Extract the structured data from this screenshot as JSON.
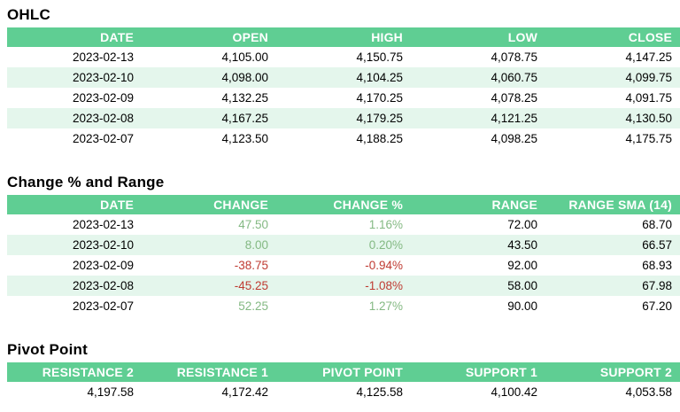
{
  "colors": {
    "header_bg": "#5fce93",
    "header_text": "#ffffff",
    "stripe_bg": "#e4f6ec",
    "body_text": "#000000",
    "positive_text": "#84b983",
    "negative_text": "#bf3b32"
  },
  "chart_data": [
    {
      "type": "table",
      "title": "OHLC",
      "columns": [
        "DATE",
        "OPEN",
        "HIGH",
        "LOW",
        "CLOSE"
      ],
      "rows": [
        [
          "2023-02-13",
          "4,105.00",
          "4,150.75",
          "4,078.75",
          "4,147.25"
        ],
        [
          "2023-02-10",
          "4,098.00",
          "4,104.25",
          "4,060.75",
          "4,099.75"
        ],
        [
          "2023-02-09",
          "4,132.25",
          "4,170.25",
          "4,078.25",
          "4,091.75"
        ],
        [
          "2023-02-08",
          "4,167.25",
          "4,179.25",
          "4,121.25",
          "4,130.50"
        ],
        [
          "2023-02-07",
          "4,123.50",
          "4,188.25",
          "4,098.25",
          "4,175.75"
        ]
      ]
    },
    {
      "type": "table",
      "title": "Change % and Range",
      "columns": [
        "DATE",
        "CHANGE",
        "CHANGE %",
        "RANGE",
        "RANGE SMA (14)"
      ],
      "rows": [
        [
          "2023-02-13",
          "47.50",
          "1.16%",
          "72.00",
          "68.70"
        ],
        [
          "2023-02-10",
          "8.00",
          "0.20%",
          "43.50",
          "66.57"
        ],
        [
          "2023-02-09",
          "-38.75",
          "-0.94%",
          "92.00",
          "68.93"
        ],
        [
          "2023-02-08",
          "-45.25",
          "-1.08%",
          "58.00",
          "67.98"
        ],
        [
          "2023-02-07",
          "52.25",
          "1.27%",
          "90.00",
          "67.20"
        ]
      ],
      "change_signs": [
        "pos",
        "pos",
        "neg",
        "neg",
        "pos"
      ]
    },
    {
      "type": "table",
      "title": "Pivot Point",
      "columns": [
        "RESISTANCE 2",
        "RESISTANCE 1",
        "PIVOT POINT",
        "SUPPORT 1",
        "SUPPORT 2"
      ],
      "rows": [
        [
          "4,197.58",
          "4,172.42",
          "4,125.58",
          "4,100.42",
          "4,053.58"
        ]
      ]
    }
  ]
}
